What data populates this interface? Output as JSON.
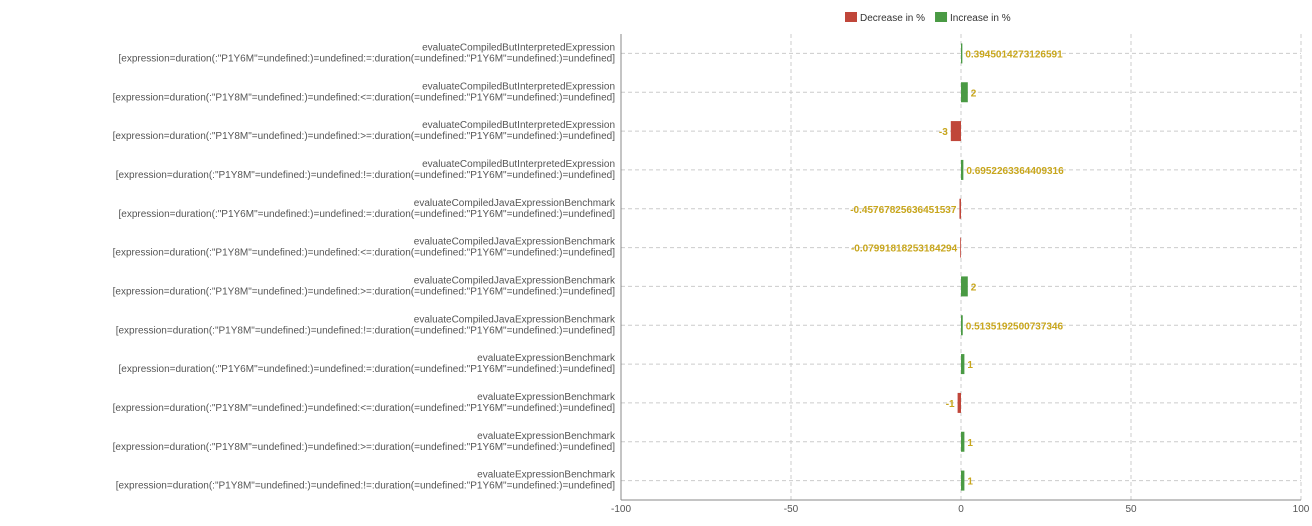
{
  "chart_data": {
    "type": "bar",
    "orientation": "horizontal",
    "categories": [
      [
        "evaluateCompiledButInterpretedExpression",
        "[expression=duration(:\"P1Y6M\"=undefined:)=undefined:=:duration(=undefined:\"P1Y6M\"=undefined:)=undefined]"
      ],
      [
        "evaluateCompiledButInterpretedExpression",
        "[expression=duration(:\"P1Y8M\"=undefined:)=undefined:<=:duration(=undefined:\"P1Y6M\"=undefined:)=undefined]"
      ],
      [
        "evaluateCompiledButInterpretedExpression",
        "[expression=duration(:\"P1Y8M\"=undefined:)=undefined:>=:duration(=undefined:\"P1Y6M\"=undefined:)=undefined]"
      ],
      [
        "evaluateCompiledButInterpretedExpression",
        "[expression=duration(:\"P1Y8M\"=undefined:)=undefined:!=:duration(=undefined:\"P1Y6M\"=undefined:)=undefined]"
      ],
      [
        "evaluateCompiledJavaExpressionBenchmark",
        "[expression=duration(:\"P1Y6M\"=undefined:)=undefined:=:duration(=undefined:\"P1Y6M\"=undefined:)=undefined]"
      ],
      [
        "evaluateCompiledJavaExpressionBenchmark",
        "[expression=duration(:\"P1Y8M\"=undefined:)=undefined:<=:duration(=undefined:\"P1Y6M\"=undefined:)=undefined]"
      ],
      [
        "evaluateCompiledJavaExpressionBenchmark",
        "[expression=duration(:\"P1Y8M\"=undefined:)=undefined:>=:duration(=undefined:\"P1Y6M\"=undefined:)=undefined]"
      ],
      [
        "evaluateCompiledJavaExpressionBenchmark",
        "[expression=duration(:\"P1Y8M\"=undefined:)=undefined:!=:duration(=undefined:\"P1Y6M\"=undefined:)=undefined]"
      ],
      [
        "evaluateExpressionBenchmark",
        "[expression=duration(:\"P1Y6M\"=undefined:)=undefined:=:duration(=undefined:\"P1Y6M\"=undefined:)=undefined]"
      ],
      [
        "evaluateExpressionBenchmark",
        "[expression=duration(:\"P1Y8M\"=undefined:)=undefined:<=:duration(=undefined:\"P1Y6M\"=undefined:)=undefined]"
      ],
      [
        "evaluateExpressionBenchmark",
        "[expression=duration(:\"P1Y8M\"=undefined:)=undefined:>=:duration(=undefined:\"P1Y6M\"=undefined:)=undefined]"
      ],
      [
        "evaluateExpressionBenchmark",
        "[expression=duration(:\"P1Y8M\"=undefined:)=undefined:!=:duration(=undefined:\"P1Y6M\"=undefined:)=undefined]"
      ]
    ],
    "values": [
      0.3945014273126591,
      2,
      -3,
      0.6952263364409316,
      -0.45767825636451537,
      -0.07991818253184294,
      2,
      0.5135192500737346,
      1,
      -1,
      1,
      1
    ],
    "value_labels": [
      "0.3945014273126591",
      "2",
      "-3",
      "0.6952263364409316",
      "-0.45767825636451537",
      "-0.07991818253184294",
      "2",
      "0.5135192500737346",
      "1",
      "-1",
      "1",
      "1"
    ],
    "xlim": [
      -100,
      100
    ],
    "xticks": [
      -100,
      -50,
      0,
      50,
      100
    ],
    "grid": true,
    "legend": {
      "placement": "top-center",
      "entries": [
        {
          "label": "Decrease in %",
          "color": "#c0463a"
        },
        {
          "label": "Increase in %",
          "color": "#4a9a44"
        }
      ]
    },
    "label_color": "#c8a61c",
    "title": "",
    "xlabel": "",
    "ylabel": ""
  }
}
